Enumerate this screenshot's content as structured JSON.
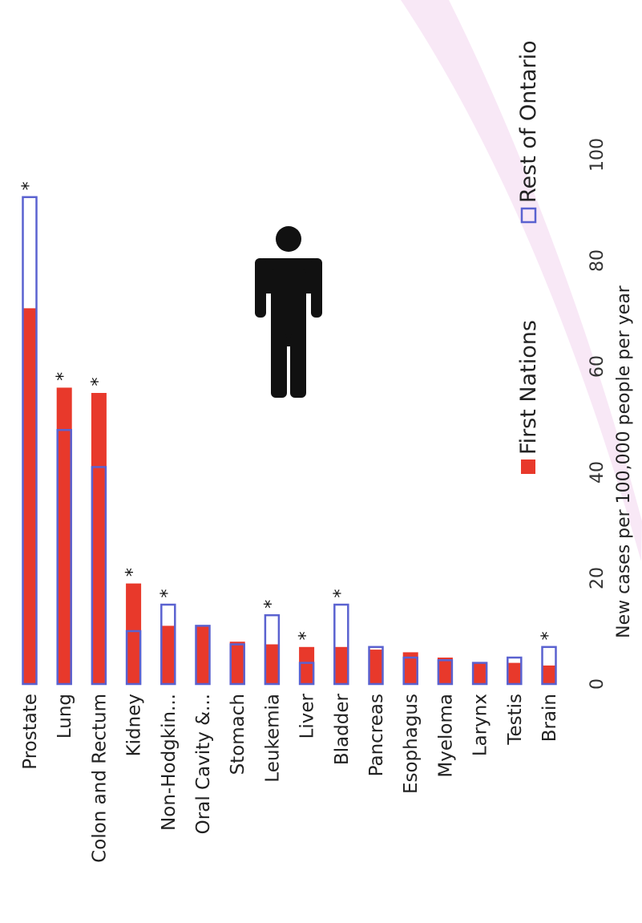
{
  "colors": {
    "first_nations": "#e8392b",
    "rest_of_ontario": "#5a62d0",
    "icon": "#111111",
    "watermark": "#f3d6ee"
  },
  "icon": "male-person-icon",
  "chart_data": {
    "type": "bar",
    "orientation": "vertical (rotated page)",
    "categories": [
      "Prostate",
      "Lung",
      "Colon and Rectum",
      "Kidney",
      "Non-Hodgkin...",
      "Oral Cavity &...",
      "Stomach",
      "Leukemia",
      "Liver",
      "Bladder",
      "Pancreas",
      "Esophagus",
      "Myeloma",
      "Larynx",
      "Testis",
      "Brain"
    ],
    "series": [
      {
        "name": "First Nations",
        "style": "filled",
        "values": [
          71,
          56,
          55,
          19,
          11,
          11,
          8,
          7.5,
          7,
          7,
          6.5,
          6,
          5,
          4,
          4,
          3.5
        ]
      },
      {
        "name": "Rest of Ontario",
        "style": "outline",
        "values": [
          92,
          48,
          41,
          10,
          15,
          11,
          7.5,
          13,
          4,
          15,
          7,
          5,
          4.5,
          4,
          5,
          7
        ]
      }
    ],
    "significant": [
      true,
      true,
      true,
      true,
      true,
      false,
      false,
      true,
      true,
      true,
      false,
      false,
      false,
      false,
      false,
      true
    ],
    "significance_marker": "*",
    "ylabel": "New cases per 100,000 people per year",
    "ylim": [
      0,
      100
    ],
    "yticks": [
      "0",
      "20",
      "40",
      "60",
      "80",
      "100"
    ],
    "legend_position": "top-right",
    "grid": false
  }
}
